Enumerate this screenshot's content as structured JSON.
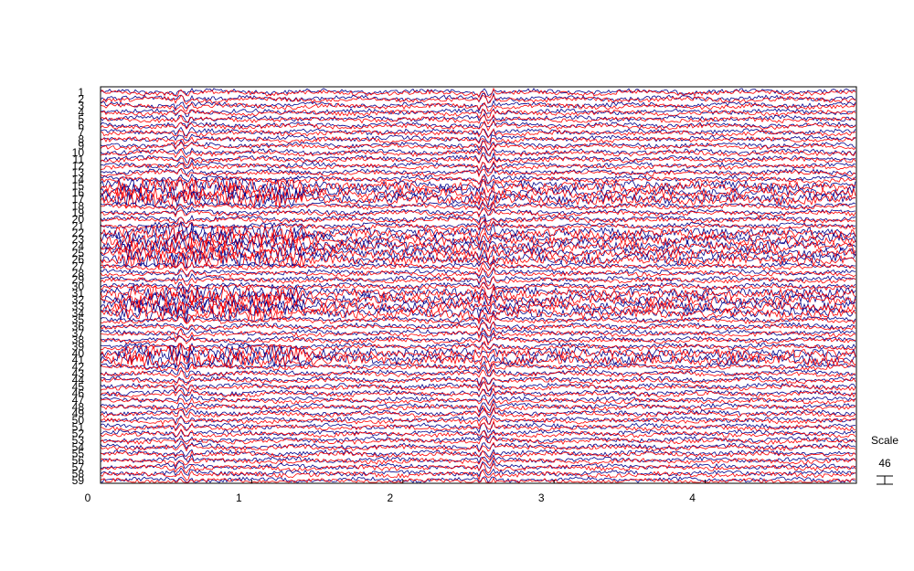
{
  "chart_data": {
    "type": "line",
    "title": "",
    "xlabel": "",
    "ylabel": "",
    "xlim": [
      0,
      5
    ],
    "x_ticks": [
      0,
      1,
      2,
      3,
      4
    ],
    "channels": [
      "1",
      "2",
      "3",
      "4",
      "5",
      "6",
      "7",
      "8",
      "9",
      "10",
      "11",
      "12",
      "13",
      "14",
      "15",
      "16",
      "17",
      "18",
      "19",
      "20",
      "21",
      "22",
      "23",
      "24",
      "25",
      "26",
      "27",
      "28",
      "29",
      "30",
      "31",
      "32",
      "33",
      "34",
      "35",
      "36",
      "37",
      "38",
      "39",
      "40",
      "41",
      "42",
      "43",
      "44",
      "45",
      "46",
      "47",
      "48",
      "49",
      "50",
      "51",
      "52",
      "53",
      "54",
      "55",
      "56",
      "57",
      "58",
      "59"
    ],
    "series": [
      {
        "color": "#00008b"
      },
      {
        "color": "#ff0000"
      }
    ],
    "grid": false,
    "scale": {
      "label": "Scale",
      "value": "46"
    }
  }
}
